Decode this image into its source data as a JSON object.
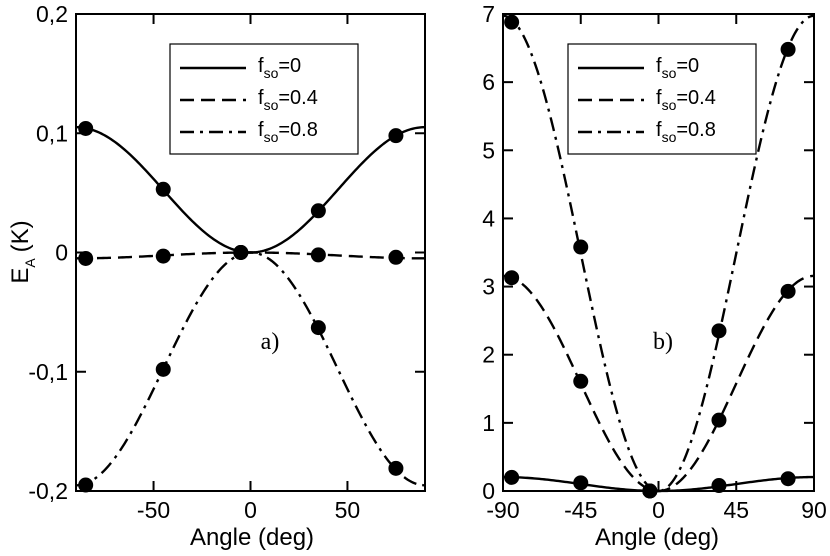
{
  "chart_data": [
    {
      "type": "line",
      "panel_label": "a)",
      "xlabel": "Angle (deg)",
      "ylabel": "E_A (K)",
      "ylabel_main": "E",
      "ylabel_sub": "A",
      "ylabel_unit": "(K)",
      "xlim": [
        -90,
        90
      ],
      "ylim": [
        -0.2,
        0.2
      ],
      "xticks": [
        -50,
        0,
        50
      ],
      "xtick_labels": [
        "-50",
        "0",
        "50"
      ],
      "yticks": [
        -0.2,
        -0.1,
        0,
        0.1,
        0.2
      ],
      "ytick_labels": [
        "-0,2",
        "-0,1",
        "0",
        "0,1",
        "0,2"
      ],
      "legend_position": "top-right",
      "series": [
        {
          "name": "fso=0",
          "name_main": "f",
          "name_sub": "so",
          "name_tail": "=0",
          "dash": "solid",
          "markers": {
            "x": [
              -85,
              -45,
              -5,
              35,
              75
            ],
            "y": [
              0.104,
              0.053,
              0.0,
              0.035,
              0.098
            ]
          }
        },
        {
          "name": "fso=0.4",
          "name_main": "f",
          "name_sub": "so",
          "name_tail": "=0.4",
          "dash": "dashed",
          "markers": {
            "x": [
              -85,
              -45,
              -5,
              35,
              75
            ],
            "y": [
              -0.005,
              -0.003,
              0.0,
              -0.002,
              -0.004
            ]
          }
        },
        {
          "name": "fso=0.8",
          "name_main": "f",
          "name_sub": "so",
          "name_tail": "=0.8",
          "dash": "dashdot",
          "markers": {
            "x": [
              -85,
              -45,
              -5,
              35,
              75
            ],
            "y": [
              -0.195,
              -0.098,
              0.0,
              -0.063,
              -0.181
            ]
          }
        }
      ]
    },
    {
      "type": "line",
      "panel_label": "b)",
      "xlabel": "Angle (deg)",
      "xlim": [
        -90,
        90
      ],
      "ylim": [
        0,
        7
      ],
      "xticks": [
        -90,
        -45,
        0,
        45,
        90
      ],
      "xtick_labels": [
        "-90",
        "-45",
        "0",
        "45",
        "90"
      ],
      "yticks": [
        0,
        1,
        2,
        3,
        4,
        5,
        6,
        7
      ],
      "ytick_labels": [
        "0",
        "1",
        "2",
        "3",
        "4",
        "5",
        "6",
        "7"
      ],
      "legend_position": "top-right",
      "series": [
        {
          "name": "fso=0",
          "name_main": "f",
          "name_sub": "so",
          "name_tail": "=0",
          "dash": "solid",
          "markers": {
            "x": [
              -85,
              -45,
              -5,
              35,
              75
            ],
            "y": [
              0.2,
              0.12,
              0.0,
              0.08,
              0.18
            ]
          }
        },
        {
          "name": "fso=0.4",
          "name_main": "f",
          "name_sub": "so",
          "name_tail": "=0.4",
          "dash": "dashed",
          "markers": {
            "x": [
              -85,
              -45,
              -5,
              35,
              75
            ],
            "y": [
              3.13,
              1.61,
              0.0,
              1.04,
              2.93
            ]
          }
        },
        {
          "name": "fso=0.8",
          "name_main": "f",
          "name_sub": "so",
          "name_tail": "=0.8",
          "dash": "dashdot",
          "markers": {
            "x": [
              -85,
              -45,
              -5,
              35,
              75
            ],
            "y": [
              6.88,
              3.58,
              0.0,
              2.35,
              6.48
            ]
          }
        }
      ]
    }
  ]
}
